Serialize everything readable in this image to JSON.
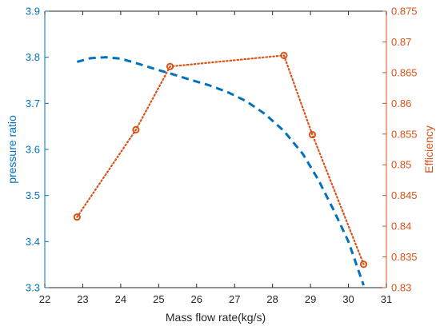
{
  "chart_data": {
    "type": "line",
    "title": "",
    "xlabel": "Mass flow  rate(kg/s)",
    "ylabel_left": "pressure ratio",
    "ylabel_right": "Efficiency",
    "xlim": [
      22,
      31
    ],
    "ylim_left": [
      3.3,
      3.9
    ],
    "ylim_right": [
      0.83,
      0.875
    ],
    "x_ticks": [
      22,
      23,
      24,
      25,
      26,
      27,
      28,
      29,
      30,
      31
    ],
    "y_left_ticks": [
      3.3,
      3.4,
      3.5,
      3.6,
      3.7,
      3.8,
      3.9
    ],
    "y_right_ticks": [
      "0.83",
      "0.835",
      "0.84",
      "0.845",
      "0.85",
      "0.855",
      "0.86",
      "0.865",
      "0.87",
      "0.875"
    ],
    "grid": false,
    "colors": {
      "left": "#0072BD",
      "right": "#D95319"
    },
    "series": [
      {
        "axis": "left",
        "style": "dashed",
        "x": [
          22.85,
          23.2,
          23.6,
          24.0,
          24.5,
          25.0,
          25.3,
          25.8,
          26.3,
          26.8,
          27.3,
          27.8,
          28.3,
          28.8,
          29.2,
          29.6,
          30.0,
          30.4
        ],
        "y": [
          3.79,
          3.798,
          3.8,
          3.797,
          3.785,
          3.772,
          3.765,
          3.752,
          3.74,
          3.725,
          3.705,
          3.677,
          3.64,
          3.59,
          3.535,
          3.47,
          3.4,
          3.305
        ]
      },
      {
        "axis": "right",
        "style": "dotted",
        "marker": "circle",
        "x": [
          22.85,
          24.4,
          25.3,
          28.3,
          29.05,
          30.4
        ],
        "y": [
          0.8415,
          0.8557,
          0.866,
          0.8678,
          0.8549,
          0.8338
        ]
      }
    ]
  }
}
